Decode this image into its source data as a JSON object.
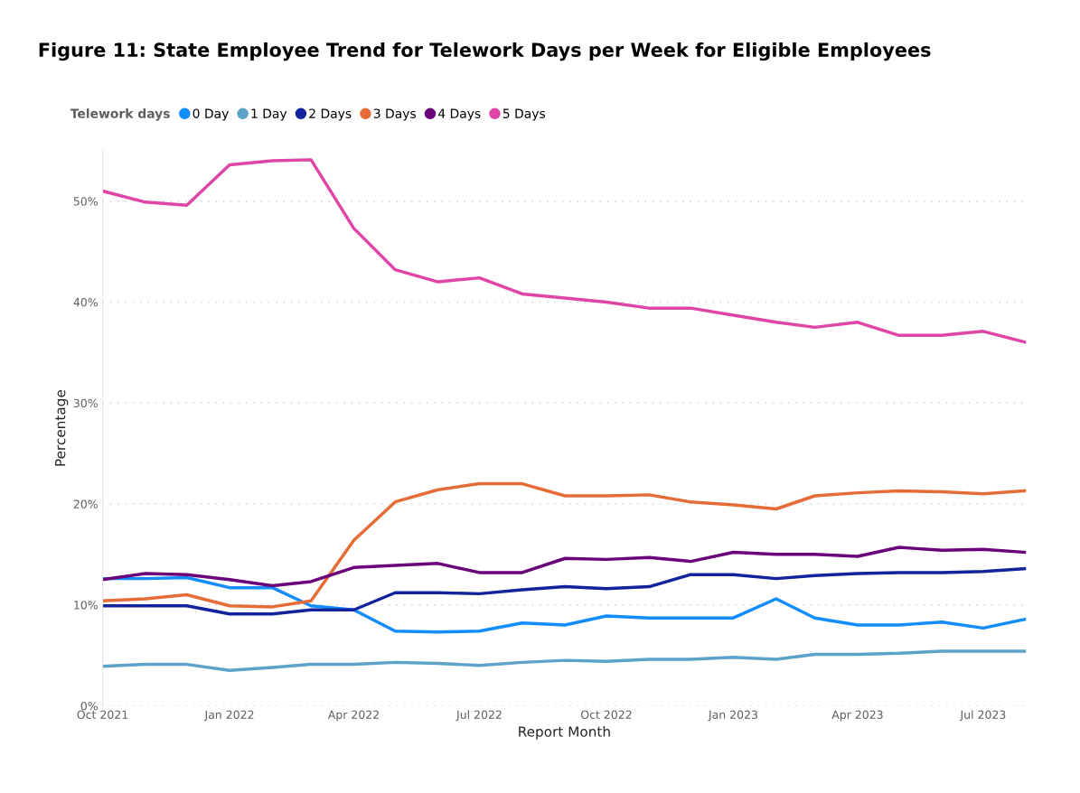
{
  "chart_data": {
    "type": "line",
    "title": "Figure 11: State Employee Trend for Telework Days per Week for Eligible Employees",
    "xlabel": "Report Month",
    "ylabel": "Percentage",
    "legend_title": "Telework days",
    "legend": "top left",
    "grid": "y",
    "marker": "none",
    "line_style": "solid",
    "x": [
      "2021-10",
      "2021-11",
      "2021-12",
      "2022-01",
      "2022-02",
      "2022-03",
      "2022-04",
      "2022-05",
      "2022-06",
      "2022-07",
      "2022-08",
      "2022-09",
      "2022-10",
      "2022-11",
      "2022-12",
      "2023-01",
      "2023-02",
      "2023-03",
      "2023-04",
      "2023-05",
      "2023-06",
      "2023-07",
      "2023-08"
    ],
    "xlim": [
      "2021-10",
      "2023-08"
    ],
    "xticks": [
      {
        "value": "2021-10",
        "label": "Oct 2021"
      },
      {
        "value": "2022-01",
        "label": "Jan 2022"
      },
      {
        "value": "2022-04",
        "label": "Apr 2022"
      },
      {
        "value": "2022-07",
        "label": "Jul 2022"
      },
      {
        "value": "2022-10",
        "label": "Oct 2022"
      },
      {
        "value": "2023-01",
        "label": "Jan 2023"
      },
      {
        "value": "2023-04",
        "label": "Apr 2023"
      },
      {
        "value": "2023-07",
        "label": "Jul 2023"
      }
    ],
    "ylim": [
      0,
      55
    ],
    "yticks": [
      {
        "value": 0,
        "label": "0%"
      },
      {
        "value": 10,
        "label": "10%"
      },
      {
        "value": 20,
        "label": "20%"
      },
      {
        "value": 30,
        "label": "30%"
      },
      {
        "value": 40,
        "label": "40%"
      },
      {
        "value": 50,
        "label": "50%"
      }
    ],
    "series": [
      {
        "name": "0 Day",
        "color": "#118dff",
        "values": [
          12.6,
          12.6,
          12.7,
          11.7,
          11.7,
          9.9,
          9.5,
          7.4,
          7.3,
          7.4,
          8.2,
          8.0,
          8.9,
          8.7,
          8.7,
          8.7,
          10.6,
          8.7,
          8.0,
          8.0,
          8.3,
          7.7,
          8.6
        ]
      },
      {
        "name": "1 Day",
        "color": "#5ba3c9",
        "values": [
          3.9,
          4.1,
          4.1,
          3.5,
          3.8,
          4.1,
          4.1,
          4.3,
          4.2,
          4.0,
          4.3,
          4.5,
          4.4,
          4.6,
          4.6,
          4.8,
          4.6,
          5.1,
          5.1,
          5.2,
          5.4,
          5.4,
          5.4
        ]
      },
      {
        "name": "2 Days",
        "color": "#12239e",
        "values": [
          9.9,
          9.9,
          9.9,
          9.1,
          9.1,
          9.5,
          9.5,
          11.2,
          11.2,
          11.1,
          11.5,
          11.8,
          11.6,
          11.8,
          13.0,
          13.0,
          12.6,
          12.9,
          13.1,
          13.2,
          13.2,
          13.3,
          13.6
        ]
      },
      {
        "name": "3 Days",
        "color": "#e66c37",
        "values": [
          10.4,
          10.6,
          11.0,
          9.9,
          9.8,
          10.4,
          16.4,
          20.2,
          21.4,
          22.0,
          22.0,
          20.8,
          20.8,
          20.9,
          20.2,
          19.9,
          19.5,
          20.8,
          21.1,
          21.3,
          21.2,
          21.0,
          21.3
        ]
      },
      {
        "name": "4 Days",
        "color": "#6b007b",
        "values": [
          12.5,
          13.1,
          13.0,
          12.5,
          11.9,
          12.3,
          13.7,
          13.9,
          14.1,
          13.2,
          13.2,
          14.6,
          14.5,
          14.7,
          14.3,
          15.2,
          15.0,
          15.0,
          14.8,
          15.7,
          15.4,
          15.5,
          15.2
        ]
      },
      {
        "name": "5 Days",
        "color": "#e044a7",
        "values": [
          51.0,
          49.9,
          49.6,
          53.6,
          54.0,
          54.1,
          47.3,
          43.2,
          42.0,
          42.4,
          40.8,
          40.4,
          40.0,
          39.4,
          39.4,
          38.7,
          38.0,
          37.5,
          38.0,
          36.7,
          36.7,
          37.1,
          36.0
        ]
      }
    ]
  }
}
